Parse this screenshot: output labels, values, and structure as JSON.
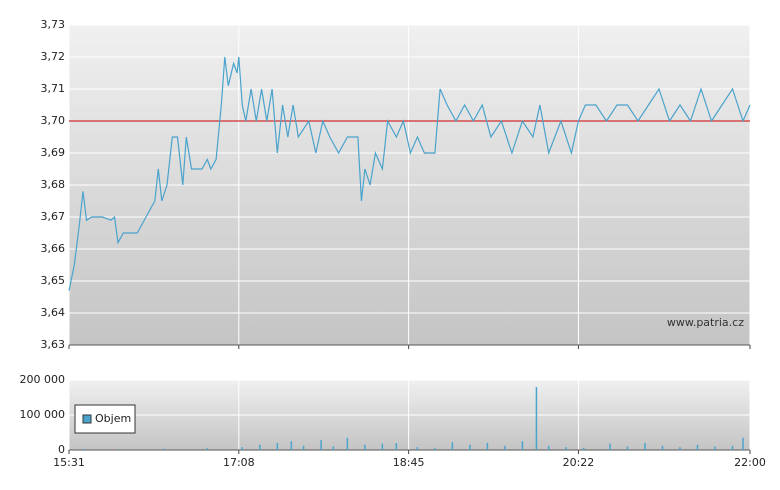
{
  "chart_data": [
    {
      "type": "line",
      "annotation": "www.patria.cz",
      "color": "#4aa3cc",
      "x": [
        931,
        934,
        937,
        939,
        941,
        944,
        950,
        955,
        957,
        959,
        962,
        970,
        975,
        980,
        982,
        984,
        987,
        990,
        993,
        996,
        998,
        1001,
        1007,
        1010,
        1012,
        1015,
        1018,
        1020,
        1022,
        1025,
        1027,
        1028,
        1030,
        1032,
        1035,
        1038,
        1041,
        1044,
        1047,
        1050,
        1053,
        1056,
        1059,
        1062,
        1068,
        1072,
        1076,
        1080,
        1085,
        1090,
        1096,
        1098,
        1100,
        1103,
        1106,
        1110,
        1113,
        1118,
        1122,
        1126,
        1130,
        1134,
        1140,
        1143,
        1147,
        1152,
        1157,
        1162,
        1167,
        1172,
        1178,
        1184,
        1190,
        1196,
        1200,
        1205,
        1212,
        1218,
        1222,
        1226,
        1232,
        1238,
        1244,
        1250,
        1256,
        1262,
        1268,
        1274,
        1280,
        1286,
        1292,
        1298,
        1304,
        1310,
        1316,
        1320
      ],
      "values": [
        3.647,
        3.655,
        3.668,
        3.678,
        3.669,
        3.67,
        3.67,
        3.669,
        3.67,
        3.662,
        3.665,
        3.665,
        3.67,
        3.675,
        3.685,
        3.675,
        3.68,
        3.695,
        3.695,
        3.68,
        3.695,
        3.685,
        3.685,
        3.688,
        3.685,
        3.688,
        3.705,
        3.72,
        3.711,
        3.718,
        3.715,
        3.72,
        3.705,
        3.7,
        3.71,
        3.7,
        3.71,
        3.7,
        3.71,
        3.69,
        3.705,
        3.695,
        3.705,
        3.695,
        3.7,
        3.69,
        3.7,
        3.695,
        3.69,
        3.695,
        3.695,
        3.675,
        3.685,
        3.68,
        3.69,
        3.685,
        3.7,
        3.695,
        3.7,
        3.69,
        3.695,
        3.69,
        3.69,
        3.71,
        3.705,
        3.7,
        3.705,
        3.7,
        3.705,
        3.695,
        3.7,
        3.69,
        3.7,
        3.695,
        3.705,
        3.69,
        3.7,
        3.69,
        3.7,
        3.705,
        3.705,
        3.7,
        3.705,
        3.705,
        3.7,
        3.705,
        3.71,
        3.7,
        3.705,
        3.7,
        3.71,
        3.7,
        3.705,
        3.71,
        3.7,
        3.705
      ],
      "reference_line": {
        "value": 3.7,
        "color": "#cc0000"
      },
      "xlim": [
        931,
        1320
      ],
      "ylim": [
        3.63,
        3.73
      ],
      "yticks": [
        {
          "value": 3.63,
          "label": "3,63"
        },
        {
          "value": 3.64,
          "label": "3,64"
        },
        {
          "value": 3.65,
          "label": "3,65"
        },
        {
          "value": 3.66,
          "label": "3,66"
        },
        {
          "value": 3.67,
          "label": "3,67"
        },
        {
          "value": 3.68,
          "label": "3,68"
        },
        {
          "value": 3.69,
          "label": "3,69"
        },
        {
          "value": 3.7,
          "label": "3,70"
        },
        {
          "value": 3.71,
          "label": "3,71"
        },
        {
          "value": 3.72,
          "label": "3,72"
        },
        {
          "value": 3.73,
          "label": "3,73"
        }
      ],
      "grid": true
    },
    {
      "type": "bar",
      "x": [
        940,
        960,
        985,
        1010,
        1030,
        1040,
        1050,
        1058,
        1065,
        1075,
        1082,
        1090,
        1100,
        1110,
        1118,
        1130,
        1140,
        1150,
        1160,
        1170,
        1180,
        1190,
        1198,
        1205,
        1215,
        1225,
        1240,
        1250,
        1260,
        1270,
        1280,
        1290,
        1300,
        1310,
        1316
      ],
      "series": [
        {
          "name": "Objem",
          "color": "#4aa3cc",
          "values": [
            3000,
            2000,
            4000,
            5000,
            8000,
            15000,
            20000,
            25000,
            12000,
            28000,
            10000,
            35000,
            15000,
            18000,
            20000,
            8000,
            5000,
            22000,
            15000,
            20000,
            12000,
            25000,
            180000,
            12000,
            8000,
            6000,
            18000,
            10000,
            20000,
            12000,
            8000,
            15000,
            10000,
            12000,
            35000
          ]
        }
      ],
      "xlim": [
        931,
        1320
      ],
      "xticks": [
        {
          "value": 931,
          "label": "15:31"
        },
        {
          "value": 1028,
          "label": "17:08"
        },
        {
          "value": 1125,
          "label": "18:45"
        },
        {
          "value": 1222,
          "label": "20:22"
        },
        {
          "value": 1320,
          "label": "22:00"
        }
      ],
      "ylim": [
        0,
        200000
      ],
      "yticks": [
        0,
        {
          "value": 100000,
          "label": "100 000"
        },
        {
          "value": 200000,
          "label": "200 000"
        }
      ],
      "grid": true,
      "legend": "bottom-left"
    }
  ]
}
